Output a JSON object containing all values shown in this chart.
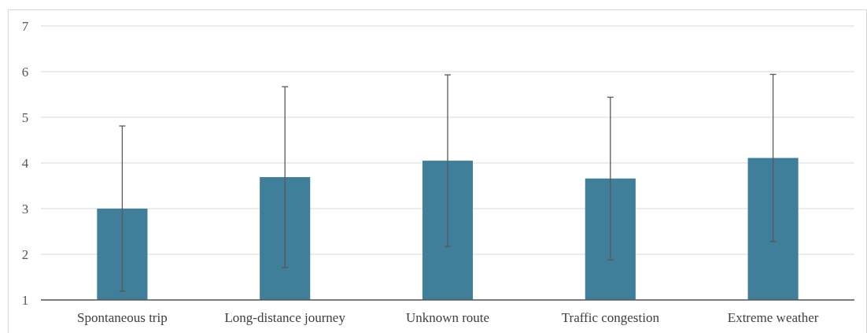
{
  "chart_data": {
    "type": "bar",
    "categories": [
      "Spontaneous trip",
      "Long-distance journey",
      "Unknown route",
      "Traffic congestion",
      "Extreme weather"
    ],
    "values": [
      3.0,
      3.69,
      4.05,
      3.66,
      4.11
    ],
    "errors": [
      1.81,
      1.98,
      1.88,
      1.78,
      1.83
    ],
    "color": "#3f7f99",
    "ylim": [
      1,
      7
    ],
    "yticks": [
      1,
      2,
      3,
      4,
      5,
      6,
      7
    ],
    "grid": "y"
  }
}
